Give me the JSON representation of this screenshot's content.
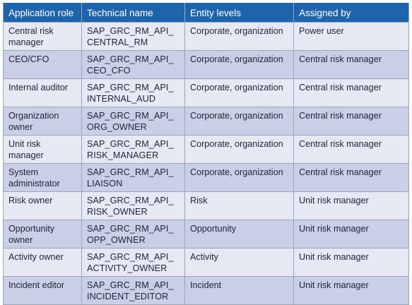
{
  "table": {
    "headers": [
      "Application role",
      "Technical name",
      "Entity levels",
      "Assigned by"
    ],
    "rows": [
      {
        "role": "Central risk manager",
        "technical": "SAP_GRC_RM_API_ CENTRAL_RM",
        "levels": "Corporate, organization",
        "assigned": "Power user"
      },
      {
        "role": "CEO/CFO",
        "technical": "SAP_GRC_RM_API_ CEO_CFO",
        "levels": "Corporate, organization",
        "assigned": "Central risk manager"
      },
      {
        "role": "Internal auditor",
        "technical": "SAP_GRC_RM_API_ INTERNAL_AUD",
        "levels": "Corporate, organization",
        "assigned": "Central risk manager"
      },
      {
        "role": "Organization owner",
        "technical": "SAP_GRC_RM_API_ ORG_OWNER",
        "levels": "Corporate, organization",
        "assigned": "Central risk manager"
      },
      {
        "role": "Unit risk manager",
        "technical": "SAP_GRC_RM_API_ RISK_MANAGER",
        "levels": "Corporate, organization",
        "assigned": "Central risk manager"
      },
      {
        "role": "System administrator",
        "technical": "SAP_GRC_RM_API_ LIAISON",
        "levels": "Corporate, organization",
        "assigned": "Central risk manager"
      },
      {
        "role": "Risk owner",
        "technical": "SAP_GRC_RM_API_ RISK_OWNER",
        "levels": "Risk",
        "assigned": "Unit risk manager"
      },
      {
        "role": "Opportunity owner",
        "technical": "SAP_GRC_RM_API_ OPP_OWNER",
        "levels": "Opportunity",
        "assigned": "Unit risk manager"
      },
      {
        "role": "Activity owner",
        "technical": "SAP_GRC_RM_API_ ACTIVITY_OWNER",
        "levels": "Activity",
        "assigned": "Unit risk manager"
      },
      {
        "role": "Incident editor",
        "technical": "SAP_GRC_RM_API_ INCIDENT_EDITOR",
        "levels": "Incident",
        "assigned": "Unit risk manager"
      }
    ]
  }
}
